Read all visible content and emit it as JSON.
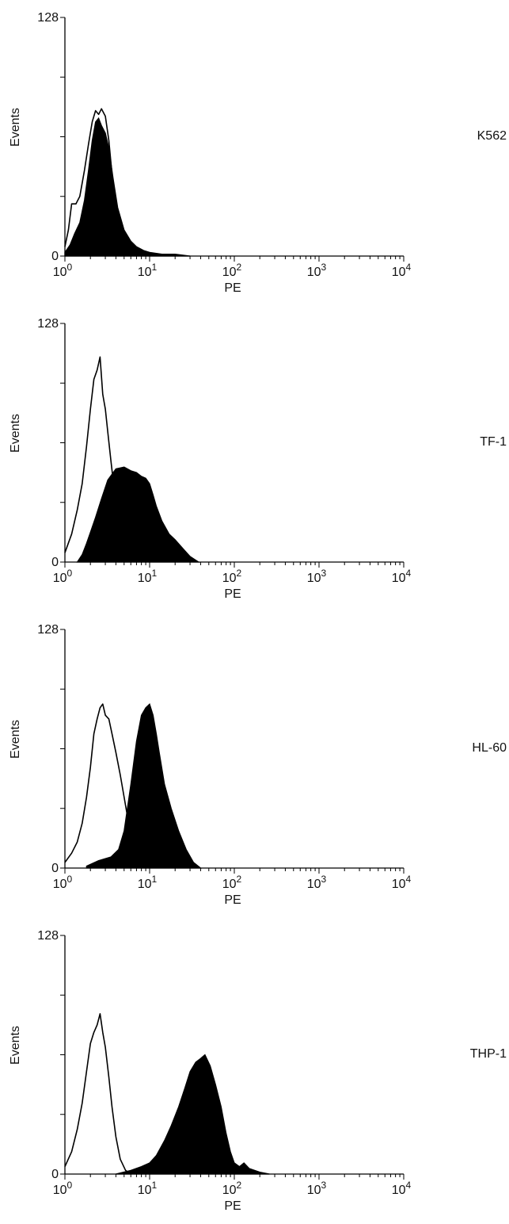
{
  "chart_data": [
    {
      "type": "area",
      "title": "K562",
      "xlabel": "PE",
      "ylabel": "Events",
      "xscale": "log",
      "xlim": [
        1,
        10000
      ],
      "ylim": [
        0,
        128
      ],
      "x_tick_labels": [
        {
          "base": "10",
          "exp": "0"
        },
        {
          "base": "10",
          "exp": "1"
        },
        {
          "base": "10",
          "exp": "2"
        },
        {
          "base": "10",
          "exp": "3"
        },
        {
          "base": "10",
          "exp": "4"
        }
      ],
      "y_tick_labels": [
        "0",
        "128"
      ],
      "series": [
        {
          "style": "outline",
          "x": [
            1,
            1.1,
            1.2,
            1.35,
            1.5,
            1.7,
            1.9,
            2.1,
            2.3,
            2.5,
            2.7,
            3.0,
            3.3,
            3.7,
            4.2,
            5,
            6,
            7,
            8
          ],
          "y": [
            5,
            14,
            28,
            28,
            32,
            46,
            60,
            72,
            78,
            76,
            79,
            75,
            62,
            38,
            18,
            6,
            2,
            1,
            0
          ]
        },
        {
          "style": "filled",
          "x": [
            1,
            1.15,
            1.3,
            1.5,
            1.7,
            1.9,
            2.1,
            2.3,
            2.5,
            2.7,
            3.0,
            3.3,
            3.7,
            4.2,
            5,
            6,
            7,
            8.5,
            10,
            14,
            20,
            30
          ],
          "y": [
            2,
            6,
            12,
            18,
            30,
            46,
            62,
            72,
            74,
            70,
            66,
            58,
            42,
            26,
            14,
            8,
            5,
            3,
            2,
            1,
            1,
            0
          ]
        }
      ]
    },
    {
      "type": "area",
      "title": "TF-1",
      "xlabel": "PE",
      "ylabel": "Events",
      "xscale": "log",
      "xlim": [
        1,
        10000
      ],
      "ylim": [
        0,
        128
      ],
      "x_tick_labels": [
        {
          "base": "10",
          "exp": "0"
        },
        {
          "base": "10",
          "exp": "1"
        },
        {
          "base": "10",
          "exp": "2"
        },
        {
          "base": "10",
          "exp": "3"
        },
        {
          "base": "10",
          "exp": "4"
        }
      ],
      "y_tick_labels": [
        "0",
        "128"
      ],
      "series": [
        {
          "style": "outline",
          "x": [
            1,
            1.2,
            1.4,
            1.6,
            1.8,
            2.0,
            2.2,
            2.4,
            2.6,
            2.8,
            3.0,
            3.2,
            3.5,
            3.8,
            4.2,
            5,
            6,
            7
          ],
          "y": [
            5,
            15,
            28,
            42,
            62,
            82,
            98,
            103,
            110,
            90,
            82,
            70,
            54,
            40,
            24,
            10,
            4,
            0
          ]
        },
        {
          "style": "filled",
          "x": [
            1.4,
            1.6,
            1.8,
            2,
            2.3,
            2.7,
            3.2,
            4,
            5,
            6,
            7,
            8,
            9,
            10,
            11,
            12,
            14,
            17,
            20,
            25,
            30,
            38
          ],
          "y": [
            0,
            4,
            10,
            16,
            24,
            34,
            44,
            50,
            51,
            49,
            48,
            46,
            45,
            42,
            36,
            30,
            22,
            15,
            12,
            7,
            3,
            0
          ]
        }
      ]
    },
    {
      "type": "area",
      "title": "HL-60",
      "xlabel": "PE",
      "ylabel": "Events",
      "xscale": "log",
      "xlim": [
        1,
        10000
      ],
      "ylim": [
        0,
        128
      ],
      "x_tick_labels": [
        {
          "base": "10",
          "exp": "0"
        },
        {
          "base": "10",
          "exp": "1"
        },
        {
          "base": "10",
          "exp": "2"
        },
        {
          "base": "10",
          "exp": "3"
        },
        {
          "base": "10",
          "exp": "4"
        }
      ],
      "y_tick_labels": [
        "0",
        "128"
      ],
      "series": [
        {
          "style": "outline",
          "x": [
            1,
            1.2,
            1.4,
            1.6,
            1.8,
            2.0,
            2.2,
            2.4,
            2.6,
            2.8,
            3.0,
            3.3,
            3.6,
            4.0,
            4.5,
            5.0,
            5.6,
            6.3,
            7
          ],
          "y": [
            3,
            8,
            14,
            24,
            38,
            54,
            72,
            80,
            86,
            88,
            82,
            80,
            72,
            62,
            50,
            38,
            25,
            10,
            0
          ]
        },
        {
          "style": "filled",
          "x": [
            1.8,
            2.5,
            3.5,
            4.3,
            5,
            6,
            7,
            8,
            9,
            10,
            11,
            12,
            13,
            15,
            18,
            22,
            27,
            33,
            40
          ],
          "y": [
            1,
            4,
            6,
            10,
            20,
            45,
            68,
            82,
            86,
            88,
            82,
            72,
            62,
            45,
            32,
            20,
            10,
            3,
            0
          ]
        }
      ]
    },
    {
      "type": "area",
      "title": "THP-1",
      "xlabel": "PE",
      "ylabel": "Events",
      "xscale": "log",
      "xlim": [
        1,
        10000
      ],
      "ylim": [
        0,
        128
      ],
      "x_tick_labels": [
        {
          "base": "10",
          "exp": "0"
        },
        {
          "base": "10",
          "exp": "1"
        },
        {
          "base": "10",
          "exp": "2"
        },
        {
          "base": "10",
          "exp": "3"
        },
        {
          "base": "10",
          "exp": "4"
        }
      ],
      "y_tick_labels": [
        "0",
        "128"
      ],
      "series": [
        {
          "style": "outline",
          "x": [
            1,
            1.2,
            1.4,
            1.6,
            1.8,
            2.0,
            2.2,
            2.4,
            2.6,
            2.8,
            3.0,
            3.3,
            3.6,
            4.0,
            4.5,
            5.2,
            6
          ],
          "y": [
            4,
            12,
            24,
            38,
            55,
            70,
            76,
            80,
            86,
            76,
            68,
            52,
            36,
            20,
            8,
            2,
            0
          ]
        },
        {
          "style": "filled",
          "x": [
            4,
            6,
            8,
            10,
            12,
            15,
            18,
            22,
            26,
            30,
            35,
            40,
            45,
            52,
            60,
            70,
            80,
            90,
            100,
            115,
            130,
            150,
            200,
            260
          ],
          "y": [
            0,
            2,
            4,
            6,
            10,
            18,
            26,
            36,
            46,
            55,
            60,
            62,
            64,
            58,
            48,
            36,
            22,
            12,
            6,
            4,
            6,
            3,
            1,
            0
          ]
        }
      ]
    }
  ]
}
